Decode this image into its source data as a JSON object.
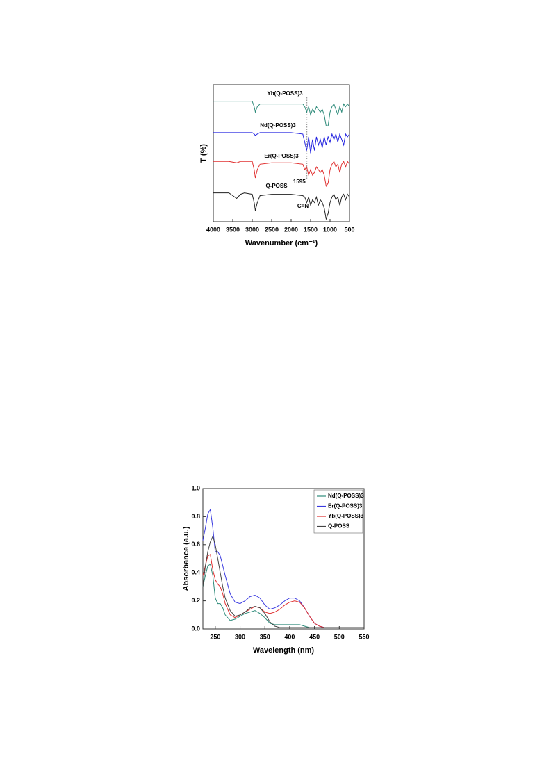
{
  "chart_data": [
    {
      "type": "line",
      "x_label": "Wavenumber (cm⁻¹)",
      "y_label": "T  (%)",
      "xlim": [
        4000,
        500
      ],
      "ylim": [
        0,
        100
      ],
      "xticks": [
        4000,
        3500,
        3000,
        2500,
        2000,
        1500,
        1000,
        500
      ],
      "legend": "inline",
      "vline": {
        "value": 1595,
        "label": "1595"
      },
      "annotations": [
        "C=N"
      ],
      "x": [
        4000,
        3600,
        3400,
        3300,
        3200,
        3000,
        2950,
        2920,
        2870,
        2800,
        2500,
        2000,
        1700,
        1650,
        1600,
        1550,
        1500,
        1450,
        1400,
        1350,
        1300,
        1250,
        1200,
        1150,
        1100,
        1050,
        1000,
        950,
        900,
        850,
        800,
        750,
        700,
        650,
        600,
        550,
        500
      ],
      "series": [
        {
          "name": "Yb(Q-POSS)3",
          "color": "#2e8b7a",
          "values": [
            88,
            88,
            88,
            88,
            88,
            88,
            84,
            80,
            84,
            86,
            86,
            86,
            86,
            84,
            80,
            84,
            78,
            82,
            80,
            84,
            82,
            80,
            82,
            78,
            70,
            70,
            80,
            84,
            86,
            82,
            78,
            84,
            80,
            86,
            84,
            86,
            84
          ]
        },
        {
          "name": "Nd(Q-POSS)3",
          "color": "#2424e0",
          "values": [
            65,
            65,
            65,
            65,
            65,
            65,
            64,
            63,
            64,
            65,
            65,
            65,
            64,
            58,
            52,
            62,
            50,
            60,
            52,
            62,
            56,
            60,
            54,
            62,
            56,
            62,
            58,
            64,
            60,
            64,
            58,
            64,
            60,
            56,
            64,
            62,
            64
          ]
        },
        {
          "name": "Er(Q-POSS)3",
          "color": "#e03030",
          "values": [
            44,
            44,
            43,
            44,
            44,
            44,
            38,
            32,
            38,
            42,
            43,
            43,
            42,
            38,
            40,
            34,
            38,
            34,
            36,
            40,
            38,
            36,
            38,
            34,
            26,
            28,
            38,
            42,
            44,
            40,
            42,
            36,
            42,
            44,
            40,
            44,
            42
          ]
        },
        {
          "name": "Q-POSS",
          "color": "#222222",
          "values": [
            21,
            21,
            17,
            20,
            21,
            20,
            14,
            8,
            14,
            19,
            20,
            20,
            19,
            18,
            14,
            18,
            12,
            16,
            14,
            18,
            12,
            16,
            14,
            10,
            2,
            6,
            14,
            18,
            20,
            16,
            18,
            12,
            18,
            20,
            16,
            20,
            18
          ]
        }
      ]
    },
    {
      "type": "line",
      "x_label": "Wavelength (nm)",
      "y_label": "Absorbance (a.u.)",
      "xlim": [
        225,
        550
      ],
      "ylim": [
        0,
        1
      ],
      "xticks": [
        250,
        300,
        350,
        400,
        450,
        500,
        550
      ],
      "yticks": [
        {
          "value": 0,
          "label": "0.0"
        },
        0.2,
        0.4,
        0.6,
        0.8,
        {
          "value": 1,
          "label": "1.0"
        }
      ],
      "legend": "upper right",
      "x": [
        225,
        230,
        235,
        240,
        245,
        250,
        255,
        260,
        265,
        270,
        280,
        290,
        300,
        310,
        320,
        330,
        340,
        350,
        360,
        370,
        380,
        390,
        400,
        410,
        420,
        430,
        440,
        450,
        460,
        470,
        480,
        500,
        550
      ],
      "series": [
        {
          "name": "Nd(Q-POSS)3",
          "color": "#2e8b7a",
          "values": [
            0.3,
            0.38,
            0.45,
            0.46,
            0.38,
            0.22,
            0.18,
            0.18,
            0.15,
            0.1,
            0.06,
            0.07,
            0.09,
            0.11,
            0.12,
            0.13,
            0.11,
            0.08,
            0.04,
            0.03,
            0.03,
            0.03,
            0.03,
            0.03,
            0.03,
            0.02,
            0.01,
            0.01,
            0.01,
            0.01,
            0.01,
            0.01,
            0.01
          ]
        },
        {
          "name": "Er(Q-POSS)3",
          "color": "#3a3ae0",
          "values": [
            0.63,
            0.72,
            0.82,
            0.85,
            0.72,
            0.55,
            0.55,
            0.52,
            0.45,
            0.38,
            0.25,
            0.19,
            0.18,
            0.2,
            0.23,
            0.24,
            0.22,
            0.17,
            0.14,
            0.15,
            0.17,
            0.2,
            0.22,
            0.22,
            0.2,
            0.15,
            0.09,
            0.04,
            0.02,
            0.01,
            0.01,
            0.01,
            0.01
          ]
        },
        {
          "name": "Yb(Q-POSS)3",
          "color": "#e03030",
          "values": [
            0.38,
            0.45,
            0.52,
            0.53,
            0.42,
            0.35,
            0.32,
            0.3,
            0.25,
            0.18,
            0.1,
            0.08,
            0.1,
            0.12,
            0.14,
            0.16,
            0.15,
            0.12,
            0.11,
            0.12,
            0.14,
            0.17,
            0.19,
            0.2,
            0.19,
            0.15,
            0.09,
            0.04,
            0.02,
            0.01,
            0.01,
            0.01,
            0.01
          ]
        },
        {
          "name": "Q-POSS",
          "color": "#444444",
          "values": [
            0.3,
            0.45,
            0.55,
            0.62,
            0.66,
            0.6,
            0.5,
            0.4,
            0.3,
            0.22,
            0.13,
            0.09,
            0.1,
            0.12,
            0.15,
            0.16,
            0.15,
            0.11,
            0.05,
            0.02,
            0.01,
            0.01,
            0.01,
            0.01,
            0.01,
            0.01,
            0.01,
            0.01,
            0.01,
            0.01,
            0.01,
            0.01,
            0.01
          ]
        }
      ]
    }
  ]
}
